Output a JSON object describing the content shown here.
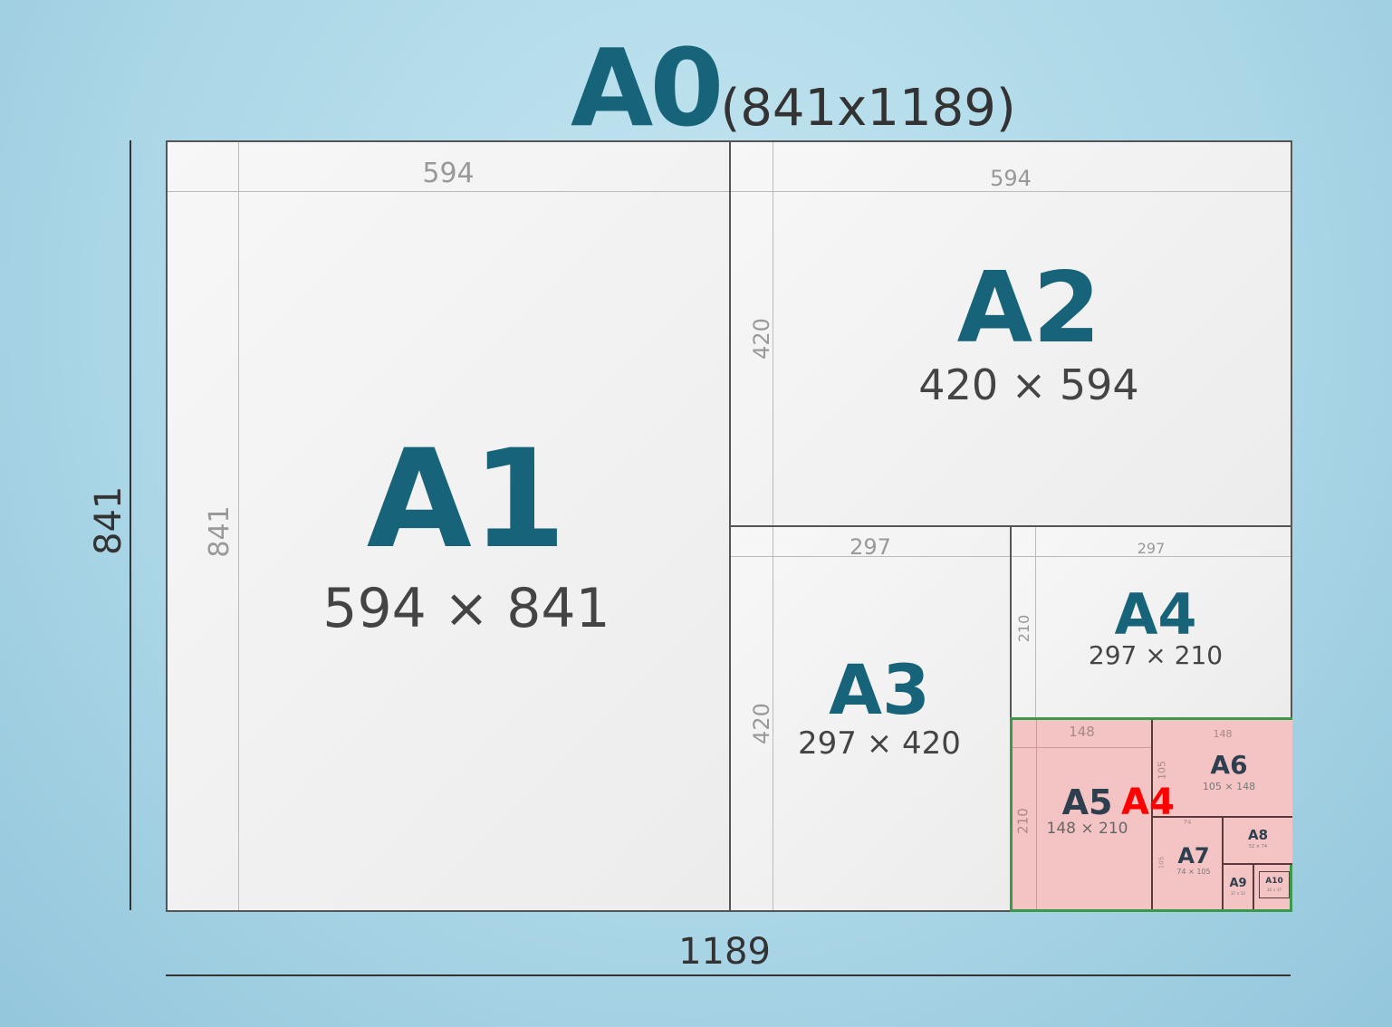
{
  "header": {
    "title": "A0",
    "size": "(841x1189)"
  },
  "outer": {
    "width": "1189",
    "height": "841"
  },
  "sheets": {
    "a1": {
      "name": "A1",
      "size": "594 × 841",
      "w": "594",
      "h": "841"
    },
    "a2": {
      "name": "A2",
      "size": "420 × 594",
      "w": "594",
      "h": "420"
    },
    "a3": {
      "name": "A3",
      "size": "297 × 420",
      "w": "297",
      "h": "420"
    },
    "a4": {
      "name": "A4",
      "size": "297 × 210",
      "w": "297",
      "h": "210"
    },
    "a5": {
      "name": "A5",
      "size": "148 × 210",
      "w": "148",
      "h": "210"
    },
    "a6": {
      "name": "A6",
      "size": "105 × 148",
      "w": "148",
      "h": "105"
    },
    "a7": {
      "name": "A7",
      "size": "74 × 105",
      "w": "74",
      "h": "105"
    },
    "a8": {
      "name": "A8",
      "size": "52 × 74"
    },
    "a9": {
      "name": "A9",
      "size": "37 × 52"
    },
    "a10": {
      "name": "A10",
      "size": "26 × 37"
    }
  },
  "highlight": {
    "label": "A4",
    "color": "#ff0000",
    "border": "#3a9a4a",
    "fill": "#f4c4c4"
  }
}
